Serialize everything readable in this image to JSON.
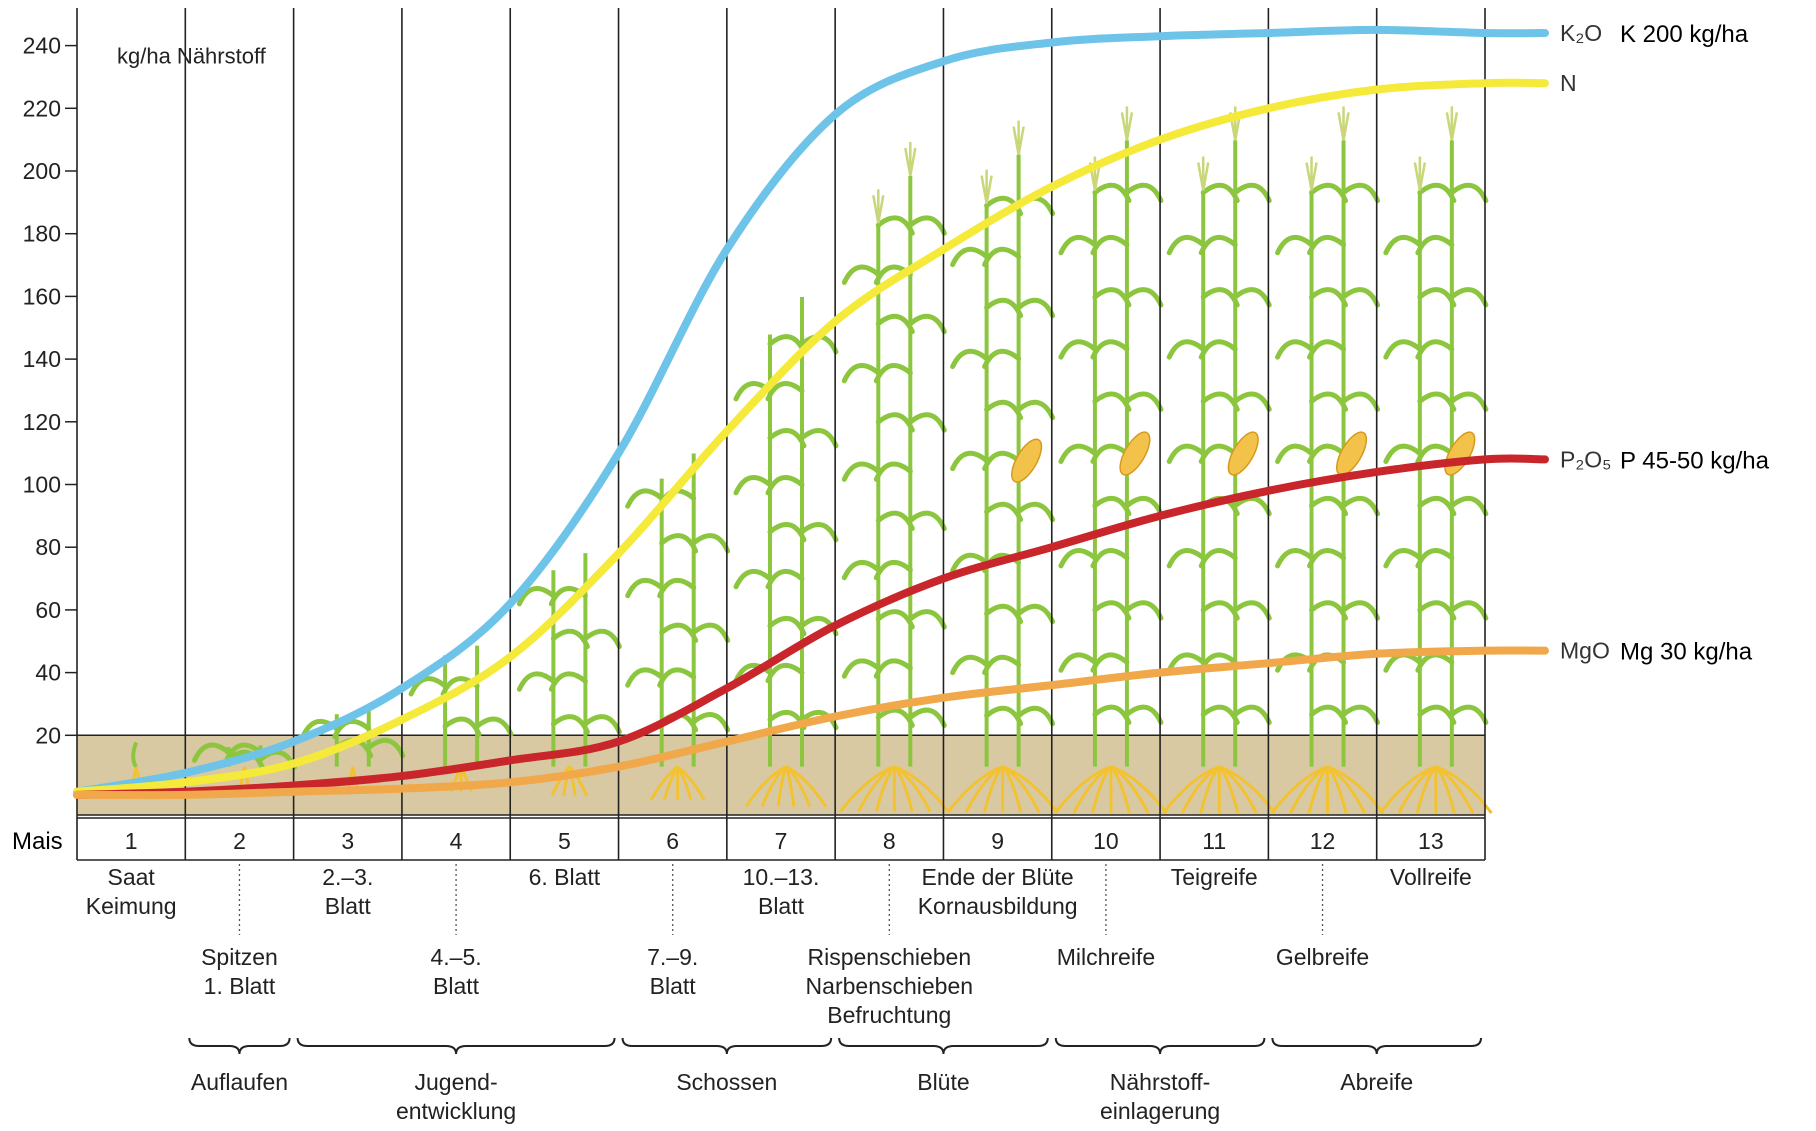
{
  "chart_data": {
    "type": "line",
    "unit_label": "kg/ha Nährstoff",
    "ylim": [
      0,
      250
    ],
    "yticks": [
      "20",
      "40",
      "60",
      "80",
      "100",
      "120",
      "140",
      "160",
      "180",
      "200",
      "220",
      "240"
    ],
    "row_label": "Mais",
    "categories": [
      "1",
      "2",
      "3",
      "4",
      "5",
      "6",
      "7",
      "8",
      "9",
      "10",
      "11",
      "12",
      "13"
    ],
    "x": [
      0,
      1,
      2,
      3,
      4,
      5,
      6,
      7,
      8,
      9,
      10,
      11,
      12,
      13
    ],
    "series": [
      {
        "name": "K₂O",
        "annotation": "K 200 kg/ha",
        "color": "#6ec3e8",
        "values": [
          2,
          8,
          18,
          35,
          62,
          110,
          175,
          218,
          235,
          241,
          243,
          244,
          245,
          244
        ]
      },
      {
        "name": "N",
        "annotation": "",
        "color": "#f5ea3a",
        "values": [
          2,
          5,
          11,
          25,
          45,
          78,
          117,
          152,
          175,
          195,
          210,
          220,
          226,
          228
        ]
      },
      {
        "name": "P₂O₅",
        "annotation": "P 45-50 kg/ha",
        "color": "#c8262b",
        "values": [
          1,
          2,
          4,
          7,
          12,
          18,
          35,
          55,
          70,
          80,
          90,
          98,
          104,
          108
        ]
      },
      {
        "name": "MgO",
        "annotation": "Mg 30 kg/ha",
        "color": "#f0a84a",
        "values": [
          1,
          1,
          2,
          3,
          5,
          10,
          18,
          26,
          32,
          36,
          40,
          43,
          46,
          47
        ]
      }
    ],
    "stage_notes_upper": [
      {
        "after": 0,
        "lines": [
          "Saat",
          "Keimung"
        ]
      },
      {
        "after": 2,
        "lines": [
          "2.–3.",
          "Blatt"
        ]
      },
      {
        "after": 4,
        "lines": [
          "6. Blatt"
        ]
      },
      {
        "after": 6,
        "lines": [
          "10.–13.",
          "Blatt"
        ]
      },
      {
        "after": 8,
        "lines": [
          "Ende der Blüte",
          "Kornausbildung"
        ]
      },
      {
        "after": 10,
        "lines": [
          "Teigreife"
        ]
      },
      {
        "after": 12,
        "lines": [
          "Vollreife"
        ]
      }
    ],
    "stage_notes_lower": [
      {
        "after": 1,
        "lines": [
          "Spitzen",
          "1. Blatt"
        ]
      },
      {
        "after": 3,
        "lines": [
          "4.–5.",
          "Blatt"
        ]
      },
      {
        "after": 5,
        "lines": [
          "7.–9.",
          "Blatt"
        ]
      },
      {
        "after": 7,
        "lines": [
          "Rispenschieben",
          "Narbenschieben",
          "Befruchtung"
        ]
      },
      {
        "after": 9,
        "lines": [
          "Milchreife"
        ]
      },
      {
        "after": 11,
        "lines": [
          "Gelbreife"
        ]
      }
    ],
    "phases": [
      {
        "from": 1,
        "to": 2,
        "lines": [
          "Auflaufen"
        ]
      },
      {
        "from": 2,
        "to": 5,
        "lines": [
          "Jugend-",
          "entwicklung"
        ]
      },
      {
        "from": 5,
        "to": 7,
        "lines": [
          "Schossen"
        ]
      },
      {
        "from": 7,
        "to": 9,
        "lines": [
          "Blüte"
        ]
      },
      {
        "from": 9,
        "to": 11,
        "lines": [
          "Nährstoff-",
          "einlagerung"
        ]
      },
      {
        "from": 11,
        "to": 13,
        "lines": [
          "Abreife"
        ]
      }
    ],
    "colors": {
      "soil": "#d9c9a3",
      "stem": "#8cc63f",
      "root": "#f2c230",
      "grid": "#222222"
    }
  }
}
